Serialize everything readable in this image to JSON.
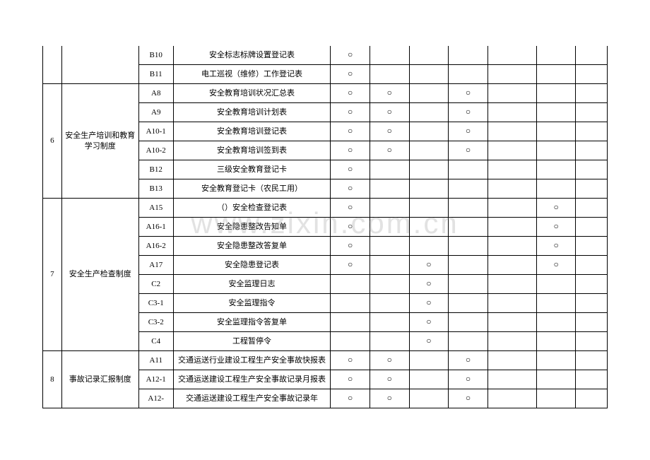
{
  "mark": "○",
  "watermark": "www.zixin.com.cn",
  "groups": [
    {
      "idx": "",
      "cat": "",
      "rows": [
        {
          "code": "B10",
          "name": "安全标志标牌设置登记表",
          "c": [
            "○",
            "",
            "",
            "",
            "",
            "",
            ""
          ]
        },
        {
          "code": "B11",
          "name": "电工巡视（维修）工作登记表",
          "c": [
            "○",
            "",
            "",
            "",
            "",
            "",
            ""
          ]
        }
      ]
    },
    {
      "idx": "6",
      "cat": "安全生产培训和教育学习制度",
      "rows": [
        {
          "code": "A8",
          "name": "安全教育培训状况汇总表",
          "c": [
            "○",
            "○",
            "",
            "○",
            "",
            "",
            ""
          ]
        },
        {
          "code": "A9",
          "name": "安全教育培训计划表",
          "c": [
            "○",
            "○",
            "",
            "○",
            "",
            "",
            ""
          ]
        },
        {
          "code": "A10-1",
          "name": "安全教育培训登记表",
          "c": [
            "○",
            "○",
            "",
            "○",
            "",
            "",
            ""
          ]
        },
        {
          "code": "A10-2",
          "name": "安全教育培训签到表",
          "c": [
            "○",
            "○",
            "",
            "○",
            "",
            "",
            ""
          ]
        },
        {
          "code": "B12",
          "name": "三级安全教育登记卡",
          "c": [
            "○",
            "",
            "",
            "",
            "",
            "",
            ""
          ]
        },
        {
          "code": "B13",
          "name": "安全教育登记卡（农民工用）",
          "c": [
            "○",
            "",
            "",
            "",
            "",
            "",
            ""
          ]
        }
      ]
    },
    {
      "idx": "7",
      "cat": "安全生产检查制度",
      "rows": [
        {
          "code": "A15",
          "name": "（）安全检查登记表",
          "c": [
            "○",
            "",
            "",
            "",
            "",
            "○",
            ""
          ]
        },
        {
          "code": "A16-1",
          "name": "安全隐患整改告知单",
          "c": [
            "○",
            "",
            "",
            "",
            "",
            "○",
            ""
          ]
        },
        {
          "code": "A16-2",
          "name": "安全隐患整改答复单",
          "c": [
            "○",
            "",
            "",
            "",
            "",
            "○",
            ""
          ]
        },
        {
          "code": "A17",
          "name": "安全隐患登记表",
          "c": [
            "○",
            "",
            "○",
            "",
            "",
            "○",
            ""
          ]
        },
        {
          "code": "C2",
          "name": "安全监理日志",
          "c": [
            "",
            "",
            "○",
            "",
            "",
            "",
            ""
          ]
        },
        {
          "code": "C3-1",
          "name": "安全监理指令",
          "c": [
            "",
            "",
            "○",
            "",
            "",
            "",
            ""
          ]
        },
        {
          "code": "C3-2",
          "name": "安全监理指令答复单",
          "c": [
            "",
            "",
            "○",
            "",
            "",
            "",
            ""
          ]
        },
        {
          "code": "C4",
          "name": "工程暂停令",
          "c": [
            "",
            "",
            "○",
            "",
            "",
            "",
            ""
          ]
        }
      ]
    },
    {
      "idx": "8",
      "cat": "事故记录汇报制度",
      "rows": [
        {
          "code": "A11",
          "name": "交通运送行业建设工程生产安全事故快报表",
          "c": [
            "○",
            "○",
            "",
            "○",
            "",
            "",
            ""
          ]
        },
        {
          "code": "A12-1",
          "name": "交通运送建设工程生产安全事故记录月报表",
          "c": [
            "○",
            "○",
            "",
            "○",
            "",
            "",
            ""
          ]
        },
        {
          "code": "A12-",
          "name": "交通运送建设工程生产安全事故记录年",
          "c": [
            "○",
            "○",
            "",
            "○",
            "",
            "",
            ""
          ]
        }
      ]
    }
  ]
}
